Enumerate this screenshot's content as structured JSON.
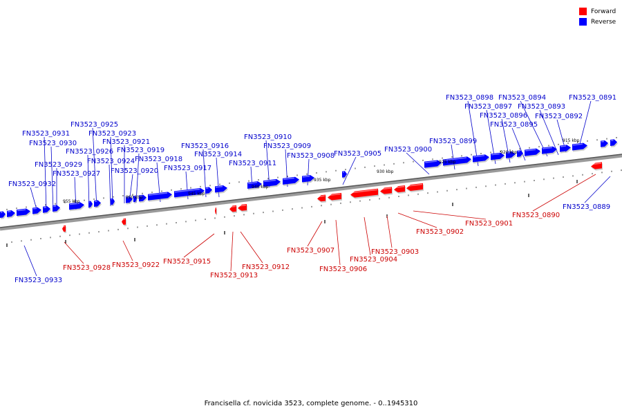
{
  "caption": "Francisella cf. novicida 3523, complete genome. - 0..1945310",
  "legend": [
    {
      "label": "Forward",
      "color": "#ff0000"
    },
    {
      "label": "Reverse",
      "color": "#0000ff"
    }
  ],
  "colors": {
    "forward": "#ff0000",
    "reverse": "#0000ff",
    "forward_label": "#cc0000",
    "reverse_label": "#0000cc"
  },
  "scale_labels": [
    "955 kbp",
    "950 kbp",
    "945 kbp",
    "940 kbp",
    "935 kbp",
    "930 kbp",
    "925 kbp",
    "920 kbp",
    "915 kbp"
  ],
  "forward_genes": [
    "FN3523_0928",
    "FN3523_0922",
    "FN3523_0915",
    "FN3523_0913",
    "FN3523_0912",
    "FN3523_0907",
    "FN3523_0906",
    "FN3523_0904",
    "FN3523_0903",
    "FN3523_0902",
    "FN3523_0901",
    "FN3523_0890"
  ],
  "reverse_genes": [
    "FN3523_0933",
    "FN3523_0932",
    "FN3523_0931",
    "FN3523_0930",
    "FN3523_0929",
    "FN3523_0927",
    "FN3523_0926",
    "FN3523_0925",
    "FN3523_0924",
    "FN3523_0923",
    "FN3523_0921",
    "FN3523_0920",
    "FN3523_0919",
    "FN3523_0918",
    "FN3523_0917",
    "FN3523_0916",
    "FN3523_0914",
    "FN3523_0911",
    "FN3523_0910",
    "FN3523_0909",
    "FN3523_0908",
    "FN3523_0905",
    "FN3523_0900",
    "FN3523_0899",
    "FN3523_0898",
    "FN3523_0897",
    "FN3523_0896",
    "FN3523_0895",
    "FN3523_0894",
    "FN3523_0893",
    "FN3523_0892",
    "FN3523_0891",
    "FN3523_0889"
  ]
}
